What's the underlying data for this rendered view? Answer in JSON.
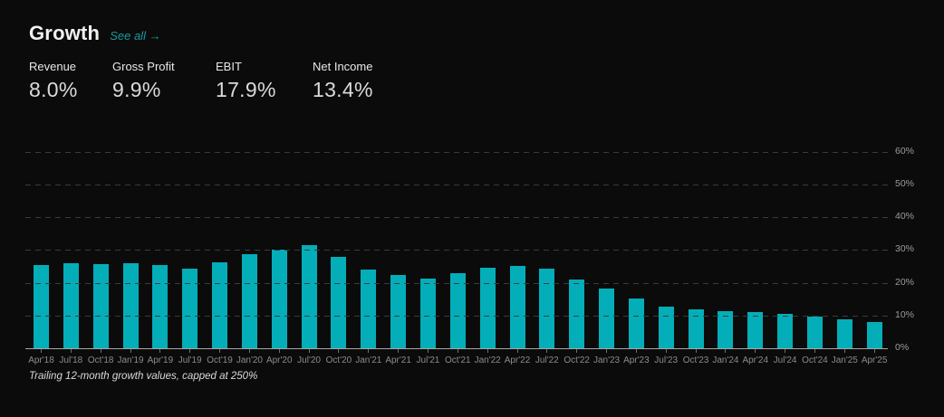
{
  "header": {
    "title": "Growth",
    "see_all_label": "See all →"
  },
  "metrics": [
    {
      "label": "Revenue",
      "value": "8.0%"
    },
    {
      "label": "Gross Profit",
      "value": "9.9%"
    },
    {
      "label": "EBIT",
      "value": "17.9%"
    },
    {
      "label": "Net Income",
      "value": "13.4%"
    }
  ],
  "chart_data": {
    "type": "bar",
    "title": "",
    "categories": [
      "Apr'18",
      "Jul'18",
      "Oct'18",
      "Jan'19",
      "Apr'19",
      "Jul'19",
      "Oct'19",
      "Jan'20",
      "Apr'20",
      "Jul'20",
      "Oct'20",
      "Jan'21",
      "Apr'21",
      "Jul'21",
      "Oct'21",
      "Jan'22",
      "Apr'22",
      "Jul'22",
      "Oct'22",
      "Jan'23",
      "Apr'23",
      "Jul'23",
      "Oct'23",
      "Jan'24",
      "Apr'24",
      "Jul'24",
      "Oct'24",
      "Jan'25",
      "Apr'25"
    ],
    "values": [
      25.5,
      26.0,
      25.8,
      26.0,
      25.5,
      24.2,
      26.3,
      28.6,
      30.0,
      31.5,
      27.8,
      24.0,
      22.5,
      21.3,
      23.0,
      24.6,
      25.2,
      24.4,
      21.1,
      18.2,
      15.2,
      12.8,
      12.0,
      11.3,
      11.0,
      10.4,
      9.8,
      8.8,
      7.9
    ],
    "unit": "%",
    "xlabel": "",
    "ylabel": "",
    "ylim": [
      0,
      60
    ],
    "yticks": [
      "0%",
      "10%",
      "20%",
      "30%",
      "40%",
      "50%",
      "60%"
    ],
    "grid": "horizontal-dashed",
    "legend": "none",
    "bar_color": "#03aeb9"
  },
  "footnote": "Trailing 12-month growth values, capped at 250%",
  "colors": {
    "background": "#0b0b0b",
    "accent_teal": "#03aeb9",
    "link_teal": "#189aa0",
    "gridline": "#3b3b3b",
    "axis_line": "#a6a6a6",
    "tick": "#6e6e6e",
    "axis_label": "#8b8b8b"
  }
}
